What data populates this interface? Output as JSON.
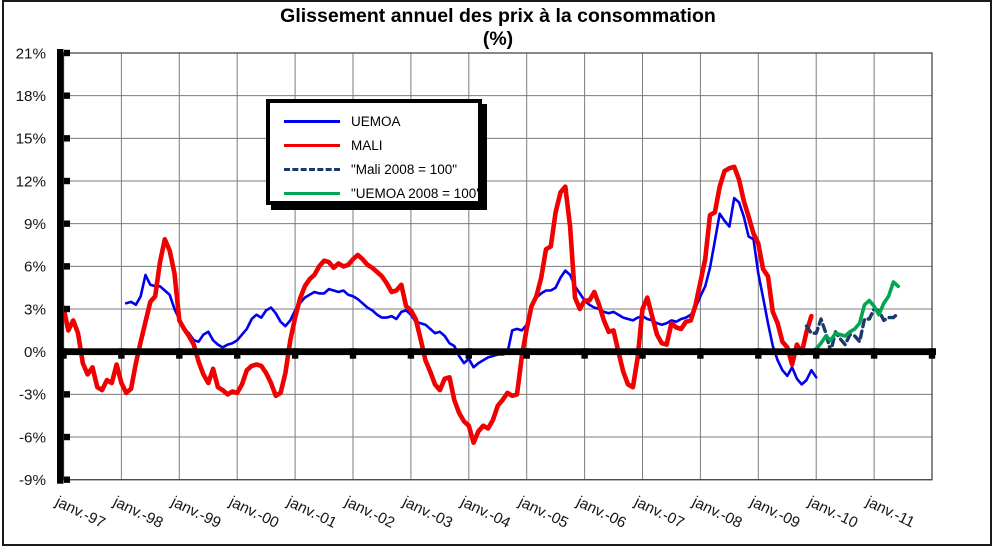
{
  "title": {
    "line1": "Glissement annuel des prix à la consommation",
    "line2": "(%)"
  },
  "chart_data": {
    "type": "line",
    "title": "Glissement annuel des prix à la consommation (%)",
    "grid": true,
    "legend_position": "inside-top-left",
    "x_axis": {
      "unit": "month",
      "months_shown": 180,
      "tick_labels": [
        "janv.-97",
        "janv.-98",
        "janv.-99",
        "janv.-00",
        "janv.-01",
        "janv.-02",
        "janv.-03",
        "janv.-04",
        "janv.-05",
        "janv.-06",
        "janv.-07",
        "janv.-08",
        "janv.-09",
        "janv.-10",
        "janv.-11"
      ]
    },
    "y_axis": {
      "unit": "%",
      "min": -9,
      "max": 21,
      "step": 3,
      "tick_labels": [
        "21%",
        "18%",
        "15%",
        "12%",
        "9%",
        "6%",
        "3%",
        "0%",
        "-3%",
        "-6%",
        "-9%"
      ]
    },
    "series": [
      {
        "name": "UEMOA",
        "legend_label": "UEMOA",
        "color": "#0000f0",
        "style": "solid",
        "stroke_width": 2.6,
        "start_month_index": 13,
        "values_pct": [
          3.4,
          3.5,
          3.3,
          3.9,
          5.4,
          4.7,
          4.6,
          4.6,
          4.3,
          4.0,
          3.0,
          2.3,
          1.6,
          1.3,
          0.8,
          0.7,
          1.2,
          1.4,
          0.8,
          0.5,
          0.3,
          0.5,
          0.6,
          0.8,
          1.2,
          1.6,
          2.3,
          2.6,
          2.4,
          2.9,
          3.1,
          2.7,
          2.1,
          1.8,
          2.2,
          2.9,
          3.4,
          3.8,
          4.0,
          4.2,
          4.1,
          4.1,
          4.4,
          4.3,
          4.2,
          4.3,
          4.0,
          3.9,
          3.7,
          3.4,
          3.1,
          2.9,
          2.6,
          2.4,
          2.4,
          2.5,
          2.3,
          2.8,
          2.9,
          2.6,
          2.1,
          2.0,
          1.9,
          1.6,
          1.3,
          1.4,
          1.1,
          0.6,
          0.4,
          -0.3,
          -0.8,
          -0.5,
          -1.1,
          -0.8,
          -0.6,
          -0.4,
          -0.3,
          -0.2,
          -0.2,
          -0.1,
          1.5,
          1.6,
          1.5,
          1.9,
          3.1,
          3.8,
          4.1,
          4.3,
          4.3,
          4.5,
          5.2,
          5.7,
          5.4,
          4.6,
          4.1,
          3.6,
          3.3,
          3.1,
          3.0,
          2.8,
          2.7,
          2.8,
          2.6,
          2.4,
          2.3,
          2.2,
          2.4,
          2.5,
          2.3,
          2.2,
          2.0,
          1.9,
          2.0,
          2.2,
          2.1,
          2.3,
          2.4,
          2.6,
          3.1,
          3.9,
          4.6,
          5.9,
          7.8,
          9.7,
          9.2,
          8.8,
          10.8,
          10.5,
          9.5,
          8.1,
          7.9,
          5.5,
          3.8,
          2.0,
          0.4,
          -0.6,
          -1.3,
          -1.7,
          -1.1,
          -1.9,
          -2.3,
          -2.0,
          -1.3,
          -1.8
        ]
      },
      {
        "name": "MALI",
        "legend_label": "MALI",
        "color": "#f00000",
        "style": "solid",
        "stroke_width": 4.6,
        "start_month_index": 0,
        "values_pct": [
          3.1,
          1.5,
          2.2,
          1.3,
          -0.8,
          -1.6,
          -1.1,
          -2.5,
          -2.7,
          -2.0,
          -2.2,
          -0.9,
          -2.2,
          -2.9,
          -2.6,
          -0.8,
          0.7,
          2.1,
          3.5,
          3.9,
          6.3,
          7.9,
          7.1,
          5.5,
          2.2,
          1.6,
          1.1,
          0.5,
          -0.7,
          -1.6,
          -2.2,
          -1.2,
          -2.5,
          -2.7,
          -3.0,
          -2.8,
          -2.9,
          -2.3,
          -1.3,
          -1.0,
          -0.9,
          -1.0,
          -1.5,
          -2.2,
          -3.1,
          -2.9,
          -1.5,
          0.8,
          2.4,
          3.7,
          4.6,
          5.1,
          5.4,
          6.0,
          6.4,
          6.3,
          5.9,
          6.2,
          6.0,
          6.1,
          6.5,
          6.8,
          6.5,
          6.1,
          5.9,
          5.6,
          5.3,
          4.8,
          4.2,
          4.3,
          4.7,
          3.2,
          2.9,
          2.3,
          0.9,
          -0.6,
          -1.4,
          -2.3,
          -2.7,
          -1.9,
          -1.8,
          -3.4,
          -4.3,
          -4.9,
          -5.2,
          -6.4,
          -5.6,
          -5.2,
          -5.4,
          -4.8,
          -3.8,
          -3.4,
          -2.9,
          -3.1,
          -3.0,
          -0.3,
          1.6,
          3.2,
          3.9,
          5.2,
          7.2,
          7.4,
          9.8,
          11.2,
          11.6,
          8.8,
          3.8,
          3.0,
          3.6,
          3.6,
          4.2,
          3.3,
          2.2,
          1.4,
          1.5,
          0.0,
          -1.4,
          -2.3,
          -2.5,
          -0.4,
          3.0,
          3.8,
          2.5,
          1.2,
          0.6,
          0.5,
          2.0,
          1.7,
          1.6,
          2.1,
          2.2,
          3.3,
          4.9,
          6.5,
          9.6,
          9.8,
          11.6,
          12.7,
          12.9,
          13.0,
          12.1,
          10.6,
          9.5,
          8.3,
          7.6,
          5.8,
          5.3,
          2.8,
          2.0,
          0.7,
          0.3,
          -0.9,
          0.5,
          -0.1,
          1.4,
          2.5
        ]
      },
      {
        "name": "Mali 2008 = 100",
        "legend_label": "\"Mali 2008 = 100\"",
        "color": "#1b3a6b",
        "style": "dashed",
        "stroke_width": 3.4,
        "start_month_index": 154,
        "values_pct": [
          1.8,
          1.3,
          1.3,
          2.3,
          1.3,
          0.0,
          1.4,
          0.9,
          0.5,
          1.2,
          1.1,
          0.7,
          2.3,
          2.3,
          3.0,
          2.9,
          2.2,
          2.4,
          2.4,
          2.7
        ]
      },
      {
        "name": "UEMOA 2008 = 100",
        "legend_label": "\"UEMOA 2008 = 100\"",
        "color": "#00a651",
        "style": "solid",
        "stroke_width": 3.6,
        "start_month_index": 156,
        "values_pct": [
          0.2,
          0.6,
          1.1,
          0.8,
          1.3,
          1.2,
          1.1,
          1.4,
          1.6,
          2.0,
          3.3,
          3.6,
          3.2,
          2.6,
          3.4,
          3.9,
          4.9,
          4.6
        ]
      }
    ]
  }
}
